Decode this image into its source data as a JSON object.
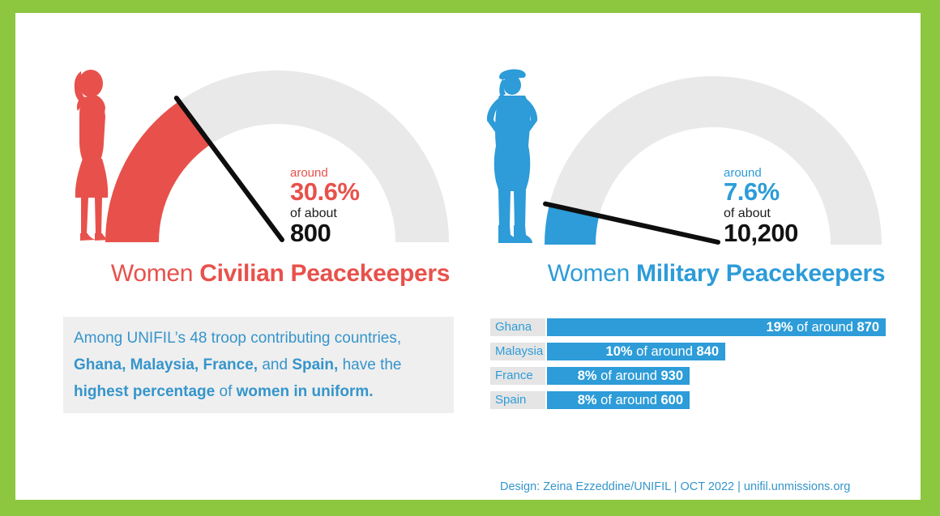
{
  "colors": {
    "border_green": "#8DC63F",
    "red": "#E8514B",
    "blue": "#2D9CD8",
    "text_blue": "#3595CB",
    "gauge_track": "#E9E9E9",
    "note_bg": "#EFEFEF",
    "label_bg": "#E5E5E5",
    "needle": "#0E0E0E"
  },
  "left_panel": {
    "stat": {
      "qualifier": "around",
      "value": "30.6%",
      "of_label": "of about",
      "total": "800"
    },
    "title": {
      "regular": "Women ",
      "bold": "Civilian Peacekeepers"
    },
    "note_lines": [
      [
        {
          "t": "Among UNIFIL’s 48 troop contributing countries,",
          "b": false
        }
      ],
      [
        {
          "t": "Ghana, Malaysia, France,",
          "b": true
        },
        {
          "t": " and ",
          "b": false
        },
        {
          "t": "Spain,",
          "b": true
        },
        {
          "t": " have the",
          "b": false
        }
      ],
      [
        {
          "t": "highest percentage",
          "b": true
        },
        {
          "t": " of ",
          "b": false
        },
        {
          "t": "women in uniform.",
          "b": true
        }
      ]
    ]
  },
  "right_panel": {
    "stat": {
      "qualifier": "around",
      "value": "7.6%",
      "of_label": "of about",
      "total": "10,200"
    },
    "title": {
      "regular": "Women ",
      "bold": "Military Peacekeepers"
    },
    "bar_of_label": "of around"
  },
  "footer": {
    "credit": "Design: Zeina Ezzeddine/UNIFIL | OCT 2022 | ",
    "link": "unifil.unmissions.org"
  },
  "chart_data": [
    {
      "type": "gauge",
      "title": "Women Civilian Peacekeepers",
      "value_pct": 30.6,
      "total": 800,
      "annotation": "around 30.6% of about 800",
      "color": "#E8514B",
      "range": [
        0,
        100
      ]
    },
    {
      "type": "gauge",
      "title": "Women Military Peacekeepers",
      "value_pct": 7.6,
      "total": 10200,
      "annotation": "around 7.6% of about 10,200",
      "color": "#2D9CD8",
      "range": [
        0,
        100
      ]
    },
    {
      "type": "bar",
      "orientation": "horizontal",
      "categories": [
        "Ghana",
        "Malaysia",
        "France",
        "Spain"
      ],
      "values": [
        19,
        10,
        8,
        8
      ],
      "unit": "%",
      "totals": [
        870,
        840,
        930,
        600
      ],
      "bar_labels": [
        "19% of around 870",
        "10% of around 840",
        "8% of around 930",
        "8% of around 600"
      ],
      "color": "#2D9CD8",
      "legend": "none",
      "grid": false
    }
  ]
}
